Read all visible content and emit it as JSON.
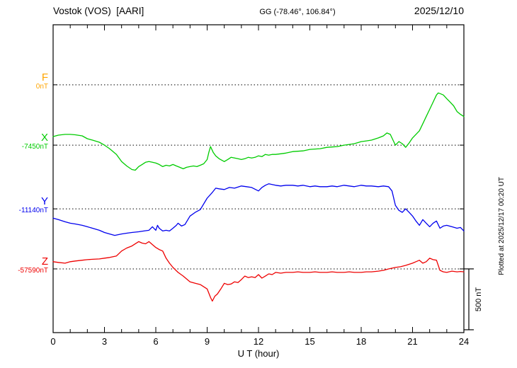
{
  "header": {
    "station": "Vostok (VOS)  [AARI]",
    "coords": "GG (-78.46°, 106.84°)",
    "date": "2025/12/10"
  },
  "footer": {
    "xlabel": "U T (hour)"
  },
  "right_margin": {
    "scale_label": "500 nT",
    "plotted_note": "Plotted at 2025/12/17 00:20 UT"
  },
  "chart_data": {
    "type": "line",
    "title": "Vostok (VOS) [AARI] magnetogram",
    "date_shown": "2025/12/10",
    "xlabel": "U T (hour)",
    "x_range": [
      0,
      24
    ],
    "x_ticks": [
      0,
      3,
      6,
      9,
      12,
      15,
      18,
      21,
      24
    ],
    "scale_bar_nT": 500,
    "grid": "dotted horizontal baseline per component",
    "y_encoding": "offset_nT_from_baseline",
    "series": [
      {
        "name": "F",
        "color": "#FFA500",
        "baseline_label": "0nT",
        "baseline_frac": 0.195,
        "unit": "nT",
        "points": []
      },
      {
        "name": "X",
        "color": "#00CC00",
        "baseline_label": "-7450nT",
        "baseline_frac": 0.391,
        "unit": "nT",
        "points": [
          [
            0,
            70
          ],
          [
            0.3,
            82
          ],
          [
            0.7,
            88
          ],
          [
            1,
            88
          ],
          [
            1.3,
            85
          ],
          [
            1.7,
            76
          ],
          [
            2,
            53
          ],
          [
            2.3,
            41
          ],
          [
            2.7,
            24
          ],
          [
            3,
            0
          ],
          [
            3.3,
            -29
          ],
          [
            3.7,
            -76
          ],
          [
            4,
            -135
          ],
          [
            4.3,
            -171
          ],
          [
            4.6,
            -200
          ],
          [
            4.8,
            -206
          ],
          [
            5,
            -176
          ],
          [
            5.2,
            -159
          ],
          [
            5.4,
            -141
          ],
          [
            5.6,
            -135
          ],
          [
            5.8,
            -141
          ],
          [
            6,
            -147
          ],
          [
            6.2,
            -159
          ],
          [
            6.4,
            -176
          ],
          [
            6.6,
            -165
          ],
          [
            6.8,
            -171
          ],
          [
            7,
            -159
          ],
          [
            7.2,
            -171
          ],
          [
            7.4,
            -182
          ],
          [
            7.6,
            -194
          ],
          [
            7.8,
            -182
          ],
          [
            8,
            -176
          ],
          [
            8.2,
            -171
          ],
          [
            8.4,
            -176
          ],
          [
            8.6,
            -165
          ],
          [
            8.8,
            -153
          ],
          [
            9,
            -118
          ],
          [
            9.1,
            -59
          ],
          [
            9.2,
            -12
          ],
          [
            9.35,
            -59
          ],
          [
            9.5,
            -88
          ],
          [
            9.7,
            -112
          ],
          [
            10,
            -135
          ],
          [
            10.2,
            -118
          ],
          [
            10.4,
            -100
          ],
          [
            10.6,
            -106
          ],
          [
            10.8,
            -112
          ],
          [
            11,
            -118
          ],
          [
            11.2,
            -112
          ],
          [
            11.4,
            -100
          ],
          [
            11.6,
            -106
          ],
          [
            11.8,
            -100
          ],
          [
            12,
            -88
          ],
          [
            12.2,
            -94
          ],
          [
            12.4,
            -76
          ],
          [
            12.6,
            -82
          ],
          [
            12.8,
            -76
          ],
          [
            13,
            -76
          ],
          [
            13.3,
            -71
          ],
          [
            13.6,
            -65
          ],
          [
            14,
            -53
          ],
          [
            14.3,
            -50
          ],
          [
            14.6,
            -47
          ],
          [
            15,
            -35
          ],
          [
            15.3,
            -32
          ],
          [
            15.6,
            -29
          ],
          [
            16,
            -18
          ],
          [
            16.3,
            -15
          ],
          [
            16.6,
            -12
          ],
          [
            17,
            0
          ],
          [
            17.3,
            6
          ],
          [
            17.6,
            12
          ],
          [
            18,
            29
          ],
          [
            18.3,
            35
          ],
          [
            18.6,
            41
          ],
          [
            19,
            59
          ],
          [
            19.3,
            76
          ],
          [
            19.5,
            100
          ],
          [
            19.7,
            88
          ],
          [
            20,
            0
          ],
          [
            20.2,
            29
          ],
          [
            20.4,
            12
          ],
          [
            20.6,
            -18
          ],
          [
            20.8,
            18
          ],
          [
            21,
            59
          ],
          [
            21.2,
            88
          ],
          [
            21.4,
            118
          ],
          [
            21.6,
            176
          ],
          [
            21.8,
            235
          ],
          [
            22,
            294
          ],
          [
            22.2,
            353
          ],
          [
            22.4,
            412
          ],
          [
            22.5,
            429
          ],
          [
            22.6,
            424
          ],
          [
            22.8,
            412
          ],
          [
            23,
            382
          ],
          [
            23.2,
            353
          ],
          [
            23.4,
            323
          ],
          [
            23.6,
            276
          ],
          [
            23.8,
            253
          ],
          [
            24,
            235
          ]
        ]
      },
      {
        "name": "Y",
        "color": "#0000EE",
        "baseline_label": "-11140nT",
        "baseline_frac": 0.598,
        "unit": "nT",
        "points": [
          [
            0,
            -76
          ],
          [
            0.3,
            -88
          ],
          [
            0.7,
            -106
          ],
          [
            1,
            -118
          ],
          [
            1.3,
            -124
          ],
          [
            1.7,
            -135
          ],
          [
            2,
            -147
          ],
          [
            2.3,
            -159
          ],
          [
            2.7,
            -176
          ],
          [
            3,
            -194
          ],
          [
            3.3,
            -206
          ],
          [
            3.6,
            -218
          ],
          [
            3.8,
            -212
          ],
          [
            4,
            -206
          ],
          [
            4.3,
            -200
          ],
          [
            4.6,
            -194
          ],
          [
            5,
            -188
          ],
          [
            5.3,
            -182
          ],
          [
            5.6,
            -176
          ],
          [
            5.8,
            -147
          ],
          [
            6,
            -176
          ],
          [
            6.1,
            -135
          ],
          [
            6.2,
            -159
          ],
          [
            6.4,
            -182
          ],
          [
            6.6,
            -176
          ],
          [
            6.8,
            -182
          ],
          [
            7,
            -159
          ],
          [
            7.2,
            -135
          ],
          [
            7.3,
            -118
          ],
          [
            7.5,
            -141
          ],
          [
            7.7,
            -129
          ],
          [
            8,
            -59
          ],
          [
            8.3,
            -29
          ],
          [
            8.6,
            -6
          ],
          [
            9,
            88
          ],
          [
            9.3,
            135
          ],
          [
            9.5,
            170
          ],
          [
            9.7,
            165
          ],
          [
            10,
            159
          ],
          [
            10.3,
            176
          ],
          [
            10.6,
            170
          ],
          [
            11,
            188
          ],
          [
            11.3,
            182
          ],
          [
            11.6,
            176
          ],
          [
            12,
            147
          ],
          [
            12.2,
            176
          ],
          [
            12.4,
            194
          ],
          [
            12.6,
            206
          ],
          [
            12.8,
            200
          ],
          [
            13,
            194
          ],
          [
            13.3,
            188
          ],
          [
            13.6,
            194
          ],
          [
            14,
            194
          ],
          [
            14.3,
            188
          ],
          [
            14.6,
            194
          ],
          [
            15,
            182
          ],
          [
            15.3,
            188
          ],
          [
            15.6,
            182
          ],
          [
            16,
            182
          ],
          [
            16.3,
            188
          ],
          [
            16.6,
            182
          ],
          [
            17,
            194
          ],
          [
            17.3,
            188
          ],
          [
            17.6,
            182
          ],
          [
            18,
            194
          ],
          [
            18.3,
            188
          ],
          [
            18.6,
            188
          ],
          [
            19,
            182
          ],
          [
            19.3,
            188
          ],
          [
            19.6,
            182
          ],
          [
            19.8,
            147
          ],
          [
            20,
            29
          ],
          [
            20.2,
            -12
          ],
          [
            20.4,
            -29
          ],
          [
            20.6,
            0
          ],
          [
            20.8,
            -29
          ],
          [
            21,
            -59
          ],
          [
            21.2,
            -100
          ],
          [
            21.4,
            -135
          ],
          [
            21.6,
            -88
          ],
          [
            21.8,
            -118
          ],
          [
            22,
            -147
          ],
          [
            22.2,
            -118
          ],
          [
            22.4,
            -100
          ],
          [
            22.6,
            -159
          ],
          [
            22.8,
            -141
          ],
          [
            23,
            -135
          ],
          [
            23.3,
            -147
          ],
          [
            23.6,
            -159
          ],
          [
            23.8,
            -153
          ],
          [
            24,
            -182
          ]
        ]
      },
      {
        "name": "Z",
        "color": "#EE0000",
        "baseline_label": "-57590nT",
        "baseline_frac": 0.793,
        "unit": "nT",
        "points": [
          [
            0,
            59
          ],
          [
            0.3,
            53
          ],
          [
            0.7,
            47
          ],
          [
            1,
            59
          ],
          [
            1.3,
            65
          ],
          [
            1.7,
            71
          ],
          [
            2,
            76
          ],
          [
            2.3,
            79
          ],
          [
            2.7,
            82
          ],
          [
            3,
            88
          ],
          [
            3.3,
            94
          ],
          [
            3.7,
            106
          ],
          [
            4,
            147
          ],
          [
            4.3,
            171
          ],
          [
            4.6,
            188
          ],
          [
            5,
            224
          ],
          [
            5.2,
            212
          ],
          [
            5.4,
            206
          ],
          [
            5.6,
            224
          ],
          [
            5.8,
            200
          ],
          [
            6,
            176
          ],
          [
            6.2,
            159
          ],
          [
            6.4,
            147
          ],
          [
            6.6,
            88
          ],
          [
            6.8,
            47
          ],
          [
            7,
            12
          ],
          [
            7.3,
            -29
          ],
          [
            7.6,
            -59
          ],
          [
            8,
            -106
          ],
          [
            8.3,
            -118
          ],
          [
            8.6,
            -129
          ],
          [
            9,
            -165
          ],
          [
            9.2,
            -235
          ],
          [
            9.3,
            -265
          ],
          [
            9.45,
            -224
          ],
          [
            9.6,
            -206
          ],
          [
            9.8,
            -165
          ],
          [
            10,
            -118
          ],
          [
            10.2,
            -129
          ],
          [
            10.4,
            -124
          ],
          [
            10.6,
            -106
          ],
          [
            10.8,
            -112
          ],
          [
            11,
            -88
          ],
          [
            11.2,
            -59
          ],
          [
            11.4,
            -71
          ],
          [
            11.6,
            -65
          ],
          [
            11.8,
            -71
          ],
          [
            12,
            -47
          ],
          [
            12.2,
            -76
          ],
          [
            12.4,
            -59
          ],
          [
            12.6,
            -41
          ],
          [
            12.8,
            -47
          ],
          [
            13,
            -29
          ],
          [
            13.3,
            -35
          ],
          [
            13.6,
            -29
          ],
          [
            14,
            -29
          ],
          [
            14.3,
            -24
          ],
          [
            14.6,
            -29
          ],
          [
            15,
            -29
          ],
          [
            15.3,
            -24
          ],
          [
            15.6,
            -29
          ],
          [
            16,
            -29
          ],
          [
            16.3,
            -24
          ],
          [
            16.6,
            -29
          ],
          [
            17,
            -29
          ],
          [
            17.3,
            -24
          ],
          [
            17.6,
            -29
          ],
          [
            18,
            -29
          ],
          [
            18.3,
            -24
          ],
          [
            18.6,
            -24
          ],
          [
            19,
            -18
          ],
          [
            19.3,
            -12
          ],
          [
            19.6,
            0
          ],
          [
            20,
            12
          ],
          [
            20.3,
            18
          ],
          [
            20.6,
            29
          ],
          [
            21,
            47
          ],
          [
            21.2,
            59
          ],
          [
            21.4,
            71
          ],
          [
            21.6,
            47
          ],
          [
            21.8,
            59
          ],
          [
            22,
            88
          ],
          [
            22.2,
            76
          ],
          [
            22.4,
            71
          ],
          [
            22.6,
            -12
          ],
          [
            22.8,
            -24
          ],
          [
            23,
            -29
          ],
          [
            23.3,
            -18
          ],
          [
            23.6,
            -24
          ],
          [
            23.8,
            -21
          ],
          [
            24,
            -24
          ]
        ]
      }
    ]
  }
}
